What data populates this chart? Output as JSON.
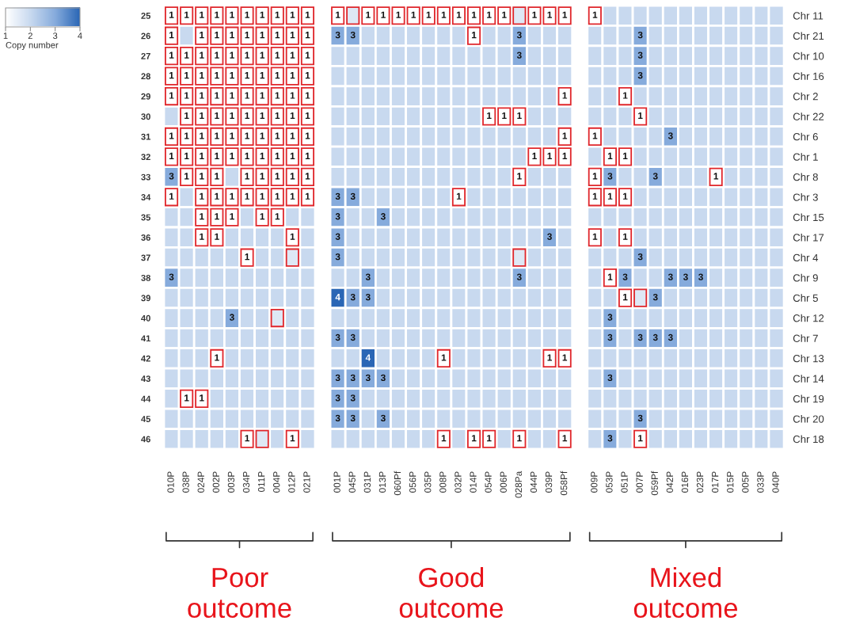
{
  "chart_data": {
    "type": "heatmap",
    "clim": [
      1,
      4
    ],
    "cticks": [
      1,
      2,
      3,
      4
    ],
    "clabel": "Copy number",
    "annotations": [
      "Poor\noutcome",
      "Good\noutcome",
      "Mixed\noutcome"
    ],
    "categories": [
      "010P",
      "038P",
      "024P",
      "002P",
      "003P",
      "034P",
      "011P",
      "004P",
      "012P",
      "021P",
      null,
      "001P",
      "045P",
      "031P",
      "013P",
      "060Pf",
      "056P",
      "035P",
      "008P",
      "032P",
      "014P",
      "054P",
      "006P",
      "028Pa",
      "044P",
      "039P",
      "058Pf",
      null,
      "009P",
      "053P",
      "051P",
      "007P",
      "059Pf",
      "042P",
      "016P",
      "023P",
      "017P",
      "015P",
      "005P",
      "033P",
      "040P"
    ],
    "y_categories": [
      "25",
      "26",
      "27",
      "28",
      "29",
      "30",
      "31",
      "32",
      "33",
      "34",
      "35",
      "36",
      "37",
      "38",
      "39",
      "40",
      "41",
      "42",
      "43",
      "44",
      "45",
      "46"
    ],
    "y2_categories": [
      "Chr 11",
      "Chr 21",
      "Chr 10",
      "Chr 16",
      "Chr 2",
      "Chr 22",
      "Chr 6",
      "Chr 1",
      "Chr 8",
      "Chr 3",
      "Chr 15",
      "Chr 17",
      "Chr 4",
      "Chr 9",
      "Chr 5",
      "Chr 12",
      "Chr 7",
      "Chr 13",
      "Chr 14",
      "Chr 19",
      "Chr 20",
      "Chr 18"
    ],
    "cells": [
      [
        1,
        1,
        1,
        1,
        1,
        1,
        1,
        1,
        1,
        1,
        null,
        1,
        1.6,
        1,
        1,
        1,
        1,
        1,
        1,
        1,
        1,
        1,
        1,
        1.6,
        1,
        1,
        1,
        null,
        1,
        2,
        2,
        2,
        2,
        2,
        2,
        2,
        2,
        2,
        2,
        2,
        2
      ],
      [
        1,
        2,
        1,
        1,
        1,
        1,
        1,
        1,
        1,
        1,
        null,
        3,
        3,
        2,
        2,
        2,
        2,
        2,
        2,
        2,
        1,
        2,
        2,
        3,
        2,
        2,
        2,
        null,
        2,
        2,
        2,
        3,
        2,
        2,
        2,
        2,
        2,
        2,
        2,
        2,
        2
      ],
      [
        1,
        1,
        1,
        1,
        1,
        1,
        1,
        1,
        1,
        1,
        null,
        2,
        2,
        2,
        2,
        2,
        2,
        2,
        2,
        2,
        2,
        2,
        2,
        3,
        2,
        2,
        2,
        null,
        2,
        2,
        2,
        3,
        2,
        2,
        2,
        2,
        2,
        2,
        2,
        2,
        2
      ],
      [
        1,
        1,
        1,
        1,
        1,
        1,
        1,
        1,
        1,
        1,
        null,
        2,
        2,
        2,
        2,
        2,
        2,
        2,
        2,
        2,
        2,
        2,
        2,
        2,
        2,
        2,
        2,
        null,
        2,
        2,
        2,
        3,
        2,
        2,
        2,
        2,
        2,
        2,
        2,
        2,
        2
      ],
      [
        1,
        1,
        1,
        1,
        1,
        1,
        1,
        1,
        1,
        1,
        null,
        2,
        2,
        2,
        2,
        2,
        2,
        2,
        2,
        2,
        2,
        2,
        2,
        2,
        2,
        2,
        1,
        null,
        2,
        2,
        1,
        2,
        2,
        2,
        2,
        2,
        2,
        2,
        2,
        2,
        2
      ],
      [
        2,
        1,
        1,
        1,
        1,
        1,
        1,
        1,
        1,
        1,
        null,
        2,
        2,
        2,
        2,
        2,
        2,
        2,
        2,
        2,
        2,
        1,
        1,
        1,
        2,
        2,
        2,
        null,
        2,
        2,
        2,
        1,
        2,
        2,
        2,
        2,
        2,
        2,
        2,
        2,
        2
      ],
      [
        1,
        1,
        1,
        1,
        1,
        1,
        1,
        1,
        1,
        1,
        null,
        2,
        2,
        2,
        2,
        2,
        2,
        2,
        2,
        2,
        2,
        2,
        2,
        2,
        2,
        2,
        1,
        null,
        1,
        2,
        2,
        2,
        2,
        3,
        2,
        2,
        2,
        2,
        2,
        2,
        2
      ],
      [
        1,
        1,
        1,
        1,
        1,
        1,
        1,
        1,
        1,
        1,
        null,
        2,
        2,
        2,
        2,
        2,
        2,
        2,
        2,
        2,
        2,
        2,
        2,
        2,
        1,
        1,
        1,
        null,
        2,
        1,
        1,
        2,
        2,
        2,
        2,
        2,
        2,
        2,
        2,
        2,
        2
      ],
      [
        3,
        1,
        1,
        1,
        2,
        1,
        1,
        1,
        1,
        1,
        null,
        2,
        2,
        2,
        2,
        2,
        2,
        2,
        2,
        2,
        2,
        2,
        2,
        1,
        2,
        2,
        2,
        null,
        1,
        3,
        2,
        2,
        3,
        2,
        2,
        2,
        1,
        2,
        2,
        2,
        2
      ],
      [
        1,
        2,
        1,
        1,
        1,
        1,
        1,
        1,
        1,
        1,
        null,
        3,
        3,
        2,
        2,
        2,
        2,
        2,
        2,
        1,
        2,
        2,
        2,
        2,
        2,
        2,
        2,
        null,
        1,
        1,
        1,
        2,
        2,
        2,
        2,
        2,
        2,
        2,
        2,
        2,
        2
      ],
      [
        2,
        2,
        1,
        1,
        1,
        2,
        1,
        1,
        2,
        2,
        null,
        3,
        2,
        2,
        3,
        2,
        2,
        2,
        2,
        2,
        2,
        2,
        2,
        2,
        2,
        2,
        2,
        null,
        2,
        2,
        2,
        2,
        2,
        2,
        2,
        2,
        2,
        2,
        2,
        2,
        2
      ],
      [
        2,
        2,
        1,
        1,
        2,
        2,
        2,
        2,
        1,
        2,
        null,
        3,
        2,
        2,
        2,
        2,
        2,
        2,
        2,
        2,
        2,
        2,
        2,
        2,
        2,
        3,
        2,
        null,
        1,
        2,
        1,
        2,
        2,
        2,
        2,
        2,
        2,
        2,
        2,
        2,
        2
      ],
      [
        2,
        2,
        2,
        2,
        2,
        1,
        2,
        2,
        1.6,
        2,
        null,
        3,
        2,
        2,
        2,
        2,
        2,
        2,
        2,
        2,
        2,
        2,
        2,
        1.6,
        2,
        2,
        2,
        null,
        2,
        2,
        2,
        3,
        2,
        2,
        2,
        2,
        2,
        2,
        2,
        2,
        2
      ],
      [
        3,
        2,
        2,
        2,
        2,
        2,
        2,
        2,
        2,
        2,
        null,
        2,
        2,
        3,
        2,
        2,
        2,
        2,
        2,
        2,
        2,
        2,
        2,
        3,
        2,
        2,
        2,
        null,
        2,
        1,
        3,
        2,
        2,
        3,
        3,
        3,
        2,
        2,
        2,
        2,
        2
      ],
      [
        2,
        2,
        2,
        2,
        2,
        2,
        2,
        2,
        2,
        2,
        null,
        4,
        3,
        3,
        2,
        2,
        2,
        2,
        2,
        2,
        2,
        2,
        2,
        2,
        2,
        2,
        2,
        null,
        2,
        2,
        1,
        1.6,
        3,
        2,
        2,
        2,
        2,
        2,
        2,
        2,
        2
      ],
      [
        2,
        2,
        2,
        2,
        3,
        2,
        2,
        1.6,
        2,
        2,
        null,
        2,
        2,
        2,
        2,
        2,
        2,
        2,
        2,
        2,
        2,
        2,
        2,
        2,
        2,
        2,
        2,
        null,
        2,
        3,
        2,
        2,
        2,
        2,
        2,
        2,
        2,
        2,
        2,
        2,
        2
      ],
      [
        2,
        2,
        2,
        2,
        2,
        2,
        2,
        2,
        2,
        2,
        null,
        3,
        3,
        2,
        2,
        2,
        2,
        2,
        2,
        2,
        2,
        2,
        2,
        2,
        2,
        2,
        2,
        null,
        2,
        3,
        2,
        3,
        3,
        3,
        2,
        2,
        2,
        2,
        2,
        2,
        2
      ],
      [
        2,
        2,
        2,
        1,
        2,
        2,
        2,
        2,
        2,
        2,
        null,
        2,
        2,
        4,
        2,
        2,
        2,
        2,
        1,
        2,
        2,
        2,
        2,
        2,
        2,
        1,
        1,
        null,
        2,
        2,
        2,
        2,
        2,
        2,
        2,
        2,
        2,
        2,
        2,
        2,
        2
      ],
      [
        2,
        2,
        2,
        2,
        2,
        2,
        2,
        2,
        2,
        2,
        null,
        3,
        3,
        3,
        3,
        2,
        2,
        2,
        2,
        2,
        2,
        2,
        2,
        2,
        2,
        2,
        2,
        null,
        2,
        3,
        2,
        2,
        2,
        2,
        2,
        2,
        2,
        2,
        2,
        2,
        2
      ],
      [
        2,
        1,
        1,
        2,
        2,
        2,
        2,
        2,
        2,
        2,
        null,
        3,
        3,
        2,
        2,
        2,
        2,
        2,
        2,
        2,
        2,
        2,
        2,
        2,
        2,
        2,
        2,
        null,
        2,
        2,
        2,
        2,
        2,
        2,
        2,
        2,
        2,
        2,
        2,
        2,
        2
      ],
      [
        2,
        2,
        2,
        2,
        2,
        2,
        2,
        2,
        2,
        2,
        null,
        3,
        3,
        2,
        3,
        2,
        2,
        2,
        2,
        2,
        2,
        2,
        2,
        2,
        2,
        2,
        2,
        null,
        2,
        2,
        2,
        3,
        2,
        2,
        2,
        2,
        2,
        2,
        2,
        2,
        2
      ],
      [
        2,
        2,
        2,
        2,
        2,
        1,
        1.6,
        2,
        1,
        2,
        null,
        2,
        2,
        2,
        2,
        2,
        2,
        2,
        1,
        2,
        1,
        1,
        2,
        1,
        2,
        2,
        1,
        null,
        2,
        3,
        2,
        1,
        2,
        2,
        2,
        2,
        2,
        2,
        2,
        2,
        2
      ]
    ],
    "cell_labels": [
      [
        "1",
        "1",
        "1",
        "1",
        "1",
        "1",
        "1",
        "1",
        "1",
        "1",
        null,
        "1",
        null,
        "1",
        "1",
        "1",
        "1",
        "1",
        "1",
        "1",
        "1",
        "1",
        "1",
        null,
        "1",
        "1",
        "1",
        null,
        "1",
        null,
        null,
        null,
        null,
        null,
        null,
        null,
        null,
        null,
        null,
        null,
        null
      ],
      [
        "1",
        null,
        "1",
        "1",
        "1",
        "1",
        "1",
        "1",
        "1",
        "1",
        null,
        "3",
        "3",
        null,
        null,
        null,
        null,
        null,
        null,
        null,
        "1",
        null,
        null,
        "3",
        null,
        null,
        null,
        null,
        null,
        null,
        null,
        "3",
        null,
        null,
        null,
        null,
        null,
        null,
        null,
        null,
        null
      ],
      [
        "1",
        "1",
        "1",
        "1",
        "1",
        "1",
        "1",
        "1",
        "1",
        "1",
        null,
        null,
        null,
        null,
        null,
        null,
        null,
        null,
        null,
        null,
        null,
        null,
        null,
        "3",
        null,
        null,
        null,
        null,
        null,
        null,
        null,
        "3",
        null,
        null,
        null,
        null,
        null,
        null,
        null,
        null,
        null
      ],
      [
        "1",
        "1",
        "1",
        "1",
        "1",
        "1",
        "1",
        "1",
        "1",
        "1",
        null,
        null,
        null,
        null,
        null,
        null,
        null,
        null,
        null,
        null,
        null,
        null,
        null,
        null,
        null,
        null,
        null,
        null,
        null,
        null,
        null,
        "3",
        null,
        null,
        null,
        null,
        null,
        null,
        null,
        null,
        null
      ],
      [
        "1",
        "1",
        "1",
        "1",
        "1",
        "1",
        "1",
        "1",
        "1",
        "1",
        null,
        null,
        null,
        null,
        null,
        null,
        null,
        null,
        null,
        null,
        null,
        null,
        null,
        null,
        null,
        null,
        "1",
        null,
        null,
        null,
        "1",
        null,
        null,
        null,
        null,
        null,
        null,
        null,
        null,
        null,
        null
      ],
      [
        null,
        "1",
        "1",
        "1",
        "1",
        "1",
        "1",
        "1",
        "1",
        "1",
        null,
        null,
        null,
        null,
        null,
        null,
        null,
        null,
        null,
        null,
        null,
        "1",
        "1",
        "1",
        null,
        null,
        null,
        null,
        null,
        null,
        null,
        "1",
        null,
        null,
        null,
        null,
        null,
        null,
        null,
        null,
        null
      ],
      [
        "1",
        "1",
        "1",
        "1",
        "1",
        "1",
        "1",
        "1",
        "1",
        "1",
        null,
        null,
        null,
        null,
        null,
        null,
        null,
        null,
        null,
        null,
        null,
        null,
        null,
        null,
        null,
        null,
        "1",
        null,
        "1",
        null,
        null,
        null,
        null,
        "3",
        null,
        null,
        null,
        null,
        null,
        null,
        null
      ],
      [
        "1",
        "1",
        "1",
        "1",
        "1",
        "1",
        "1",
        "1",
        "1",
        "1",
        null,
        null,
        null,
        null,
        null,
        null,
        null,
        null,
        null,
        null,
        null,
        null,
        null,
        null,
        "1",
        "1",
        "1",
        null,
        null,
        "1",
        "1",
        null,
        null,
        null,
        null,
        null,
        null,
        null,
        null,
        null,
        null
      ],
      [
        "3",
        "1",
        "1",
        "1",
        null,
        "1",
        "1",
        "1",
        "1",
        "1",
        null,
        null,
        null,
        null,
        null,
        null,
        null,
        null,
        null,
        null,
        null,
        null,
        null,
        "1",
        null,
        null,
        null,
        null,
        "1",
        "3",
        null,
        null,
        "3",
        null,
        null,
        null,
        "1",
        null,
        null,
        null,
        null
      ],
      [
        "1",
        null,
        "1",
        "1",
        "1",
        "1",
        "1",
        "1",
        "1",
        "1",
        null,
        "3",
        "3",
        null,
        null,
        null,
        null,
        null,
        null,
        "1",
        null,
        null,
        null,
        null,
        null,
        null,
        null,
        null,
        "1",
        "1",
        "1",
        null,
        null,
        null,
        null,
        null,
        null,
        null,
        null,
        null,
        null
      ],
      [
        null,
        null,
        "1",
        "1",
        "1",
        null,
        "1",
        "1",
        null,
        null,
        null,
        "3",
        null,
        null,
        "3",
        null,
        null,
        null,
        null,
        null,
        null,
        null,
        null,
        null,
        null,
        null,
        null,
        null,
        null,
        null,
        null,
        null,
        null,
        null,
        null,
        null,
        null,
        null,
        null,
        null,
        null
      ],
      [
        null,
        null,
        "1",
        "1",
        null,
        null,
        null,
        null,
        "1",
        null,
        null,
        "3",
        null,
        null,
        null,
        null,
        null,
        null,
        null,
        null,
        null,
        null,
        null,
        null,
        null,
        "3",
        null,
        null,
        "1",
        null,
        "1",
        null,
        null,
        null,
        null,
        null,
        null,
        null,
        null,
        null,
        null
      ],
      [
        null,
        null,
        null,
        null,
        null,
        "1",
        null,
        null,
        null,
        null,
        null,
        "3",
        null,
        null,
        null,
        null,
        null,
        null,
        null,
        null,
        null,
        null,
        null,
        null,
        null,
        null,
        null,
        null,
        null,
        null,
        null,
        "3",
        null,
        null,
        null,
        null,
        null,
        null,
        null,
        null,
        null
      ],
      [
        "3",
        null,
        null,
        null,
        null,
        null,
        null,
        null,
        null,
        null,
        null,
        null,
        null,
        "3",
        null,
        null,
        null,
        null,
        null,
        null,
        null,
        null,
        null,
        "3",
        null,
        null,
        null,
        null,
        null,
        "1",
        "3",
        null,
        null,
        "3",
        "3",
        "3",
        null,
        null,
        null,
        null,
        null
      ],
      [
        null,
        null,
        null,
        null,
        null,
        null,
        null,
        null,
        null,
        null,
        null,
        "4",
        "3",
        "3",
        null,
        null,
        null,
        null,
        null,
        null,
        null,
        null,
        null,
        null,
        null,
        null,
        null,
        null,
        null,
        null,
        "1",
        null,
        "3",
        null,
        null,
        null,
        null,
        null,
        null,
        null,
        null
      ],
      [
        null,
        null,
        null,
        null,
        "3",
        null,
        null,
        null,
        null,
        null,
        null,
        null,
        null,
        null,
        null,
        null,
        null,
        null,
        null,
        null,
        null,
        null,
        null,
        null,
        null,
        null,
        null,
        null,
        null,
        "3",
        null,
        null,
        null,
        null,
        null,
        null,
        null,
        null,
        null,
        null,
        null
      ],
      [
        null,
        null,
        null,
        null,
        null,
        null,
        null,
        null,
        null,
        null,
        null,
        "3",
        "3",
        null,
        null,
        null,
        null,
        null,
        null,
        null,
        null,
        null,
        null,
        null,
        null,
        null,
        null,
        null,
        null,
        "3",
        null,
        "3",
        "3",
        "3",
        null,
        null,
        null,
        null,
        null,
        null,
        null
      ],
      [
        null,
        null,
        null,
        "1",
        null,
        null,
        null,
        null,
        null,
        null,
        null,
        null,
        null,
        "4",
        null,
        null,
        null,
        null,
        "1",
        null,
        null,
        null,
        null,
        null,
        null,
        "1",
        "1",
        null,
        null,
        null,
        null,
        null,
        null,
        null,
        null,
        null,
        null,
        null,
        null,
        null,
        null
      ],
      [
        null,
        null,
        null,
        null,
        null,
        null,
        null,
        null,
        null,
        null,
        null,
        "3",
        "3",
        "3",
        "3",
        null,
        null,
        null,
        null,
        null,
        null,
        null,
        null,
        null,
        null,
        null,
        null,
        null,
        null,
        "3",
        null,
        null,
        null,
        null,
        null,
        null,
        null,
        null,
        null,
        null,
        null
      ],
      [
        null,
        "1",
        "1",
        null,
        null,
        null,
        null,
        null,
        null,
        null,
        null,
        "3",
        "3",
        null,
        null,
        null,
        null,
        null,
        null,
        null,
        null,
        null,
        null,
        null,
        null,
        null,
        null,
        null,
        null,
        null,
        null,
        null,
        null,
        null,
        null,
        null,
        null,
        null,
        null,
        null,
        null
      ],
      [
        null,
        null,
        null,
        null,
        null,
        null,
        null,
        null,
        null,
        null,
        null,
        "3",
        "3",
        null,
        "3",
        null,
        null,
        null,
        null,
        null,
        null,
        null,
        null,
        null,
        null,
        null,
        null,
        null,
        null,
        null,
        null,
        "3",
        null,
        null,
        null,
        null,
        null,
        null,
        null,
        null,
        null
      ],
      [
        null,
        null,
        null,
        null,
        null,
        "1",
        null,
        null,
        "1",
        null,
        null,
        null,
        null,
        null,
        null,
        null,
        null,
        null,
        "1",
        null,
        "1",
        "1",
        null,
        "1",
        null,
        null,
        "1",
        null,
        null,
        "3",
        null,
        "1",
        null,
        null,
        null,
        null,
        null,
        null,
        null,
        null,
        null
      ]
    ]
  }
}
